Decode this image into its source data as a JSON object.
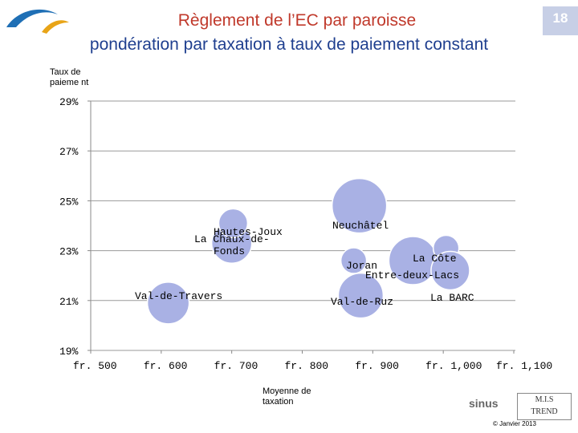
{
  "header": {
    "title_line1": "Règlement de l’EC par paroisse",
    "title_line2": "pondération par taxation à taux de paiement constant",
    "page_number": "18"
  },
  "footer": {
    "copyright": "© Janvier 2013",
    "brand_sinus": "sinus",
    "brand_mis_line1": "M.I.S",
    "brand_mis_line2": "TREND"
  },
  "colors": {
    "bubble": "#a9b1e4",
    "title_red": "#c0392b",
    "title_blue": "#1f3f8f"
  },
  "chart_data": {
    "type": "scatter",
    "ylabel": "Taux de paieme nt",
    "xlabel": "Moyenne de taxation",
    "xlim": [
      500,
      1100
    ],
    "ylim": [
      19,
      29
    ],
    "xticks": [
      500,
      600,
      700,
      800,
      900,
      1000,
      1100
    ],
    "xtick_labels": [
      "fr. 500",
      "fr. 600",
      "fr. 700",
      "fr. 800",
      "fr. 900",
      "fr. 1,000",
      "fr. 1,100"
    ],
    "yticks": [
      19,
      21,
      23,
      25,
      27,
      29
    ],
    "ytick_labels": [
      "19%",
      "21%",
      "23%",
      "25%",
      "27%",
      "29%"
    ],
    "points": [
      {
        "label": "Val-de-Travers",
        "x": 610,
        "y": 20.9,
        "size": 26
      },
      {
        "label": "La Chaux-de-Fonds",
        "x": 700,
        "y": 23.3,
        "size": 25
      },
      {
        "label": "Hautes-Joux",
        "x": 702,
        "y": 24.1,
        "size": 18
      },
      {
        "label": "Neuchâtel",
        "x": 881,
        "y": 24.8,
        "size": 34
      },
      {
        "label": "Joran",
        "x": 873,
        "y": 22.6,
        "size": 16
      },
      {
        "label": "Val-de-Ruz",
        "x": 883,
        "y": 21.2,
        "size": 28
      },
      {
        "label": "Entre-deux-Lacs",
        "x": 957,
        "y": 22.6,
        "size": 30
      },
      {
        "label": "La Côte",
        "x": 1004,
        "y": 23.1,
        "size": 16
      },
      {
        "label": "La BARC",
        "x": 1010,
        "y": 22.2,
        "size": 24
      }
    ],
    "grid": true
  }
}
